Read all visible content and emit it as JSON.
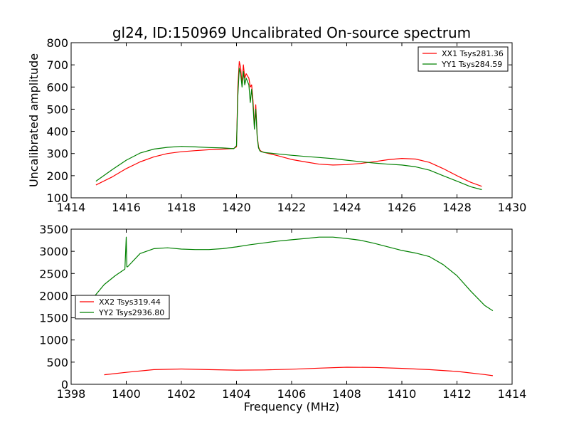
{
  "chart_data": [
    {
      "type": "line",
      "title": "gl24, ID:150969 Uncalibrated On-source spectrum",
      "xlabel": "",
      "ylabel": "Uncalibrated amplitude",
      "xlim": [
        1414,
        1430
      ],
      "ylim": [
        100,
        800
      ],
      "xticks": [
        1414,
        1416,
        1418,
        1420,
        1422,
        1424,
        1426,
        1428,
        1430
      ],
      "yticks": [
        100,
        200,
        300,
        400,
        500,
        600,
        700,
        800
      ],
      "legend_position": "top-right",
      "series": [
        {
          "name": "XX1 Tsys281.36",
          "color": "#ff0000",
          "x": [
            1414.9,
            1415.5,
            1416.0,
            1416.5,
            1417.0,
            1417.5,
            1418.0,
            1418.5,
            1419.0,
            1419.5,
            1419.9,
            1420.0,
            1420.05,
            1420.1,
            1420.15,
            1420.2,
            1420.25,
            1420.3,
            1420.35,
            1420.4,
            1420.45,
            1420.5,
            1420.55,
            1420.6,
            1420.65,
            1420.7,
            1420.75,
            1420.8,
            1420.85,
            1420.9,
            1421.0,
            1421.5,
            1422.0,
            1422.5,
            1423.0,
            1423.5,
            1424.0,
            1424.5,
            1425.0,
            1425.5,
            1426.0,
            1426.5,
            1427.0,
            1427.5,
            1428.0,
            1428.5,
            1428.9
          ],
          "y": [
            158,
            195,
            232,
            262,
            285,
            300,
            308,
            313,
            317,
            320,
            323,
            330,
            600,
            715,
            690,
            610,
            700,
            640,
            660,
            650,
            640,
            600,
            610,
            540,
            420,
            520,
            380,
            330,
            315,
            310,
            305,
            290,
            273,
            262,
            252,
            248,
            250,
            255,
            263,
            272,
            278,
            275,
            260,
            232,
            200,
            170,
            152
          ]
        },
        {
          "name": "YY1 Tsys284.59",
          "color": "#008000",
          "x": [
            1414.9,
            1415.5,
            1416.0,
            1416.5,
            1417.0,
            1417.5,
            1418.0,
            1418.5,
            1419.0,
            1419.5,
            1419.9,
            1420.0,
            1420.05,
            1420.1,
            1420.15,
            1420.2,
            1420.25,
            1420.3,
            1420.35,
            1420.4,
            1420.45,
            1420.5,
            1420.55,
            1420.6,
            1420.65,
            1420.7,
            1420.75,
            1420.8,
            1420.85,
            1420.9,
            1421.0,
            1421.5,
            1422.0,
            1422.5,
            1423.0,
            1423.5,
            1424.0,
            1424.5,
            1425.0,
            1425.5,
            1426.0,
            1426.5,
            1427.0,
            1427.5,
            1428.0,
            1428.5,
            1428.9
          ],
          "y": [
            175,
            228,
            270,
            302,
            320,
            328,
            332,
            330,
            327,
            325,
            322,
            335,
            560,
            685,
            660,
            600,
            670,
            610,
            640,
            625,
            610,
            530,
            590,
            520,
            410,
            500,
            375,
            325,
            312,
            308,
            305,
            298,
            292,
            287,
            282,
            277,
            270,
            263,
            257,
            252,
            248,
            240,
            225,
            200,
            175,
            150,
            137
          ]
        }
      ]
    },
    {
      "type": "line",
      "title": "",
      "xlabel": "Frequency (MHz)",
      "ylabel": "",
      "xlim": [
        1398,
        1414
      ],
      "ylim": [
        0,
        3500
      ],
      "xticks": [
        1398,
        1400,
        1402,
        1404,
        1406,
        1408,
        1410,
        1412,
        1414
      ],
      "yticks": [
        0,
        500,
        1000,
        1500,
        2000,
        2500,
        3000,
        3500
      ],
      "legend_position": "middle-left",
      "series": [
        {
          "name": "XX2 Tsys319.44",
          "color": "#ff0000",
          "x": [
            1399.2,
            1400.0,
            1401.0,
            1402.0,
            1403.0,
            1404.0,
            1405.0,
            1406.0,
            1407.0,
            1408.0,
            1409.0,
            1410.0,
            1411.0,
            1412.0,
            1413.0,
            1413.3
          ],
          "y": [
            215,
            270,
            330,
            345,
            330,
            320,
            325,
            340,
            365,
            385,
            380,
            360,
            330,
            290,
            220,
            195
          ]
        },
        {
          "name": "YY2 Tsys2936.80",
          "color": "#008000",
          "x": [
            1398.8,
            1399.2,
            1399.6,
            1399.95,
            1400.0,
            1400.02,
            1400.05,
            1400.5,
            1401.0,
            1401.5,
            1402.0,
            1402.5,
            1403.0,
            1403.5,
            1404.0,
            1404.5,
            1405.0,
            1405.5,
            1406.0,
            1406.5,
            1407.0,
            1407.5,
            1408.0,
            1408.5,
            1409.0,
            1409.5,
            1410.0,
            1410.5,
            1411.0,
            1411.5,
            1412.0,
            1412.5,
            1413.0,
            1413.3
          ],
          "y": [
            1950,
            2250,
            2450,
            2600,
            3320,
            2650,
            2650,
            2950,
            3060,
            3080,
            3050,
            3040,
            3040,
            3060,
            3100,
            3150,
            3190,
            3230,
            3260,
            3290,
            3320,
            3320,
            3290,
            3250,
            3180,
            3100,
            3020,
            2960,
            2880,
            2700,
            2450,
            2100,
            1780,
            1660
          ]
        }
      ]
    }
  ]
}
